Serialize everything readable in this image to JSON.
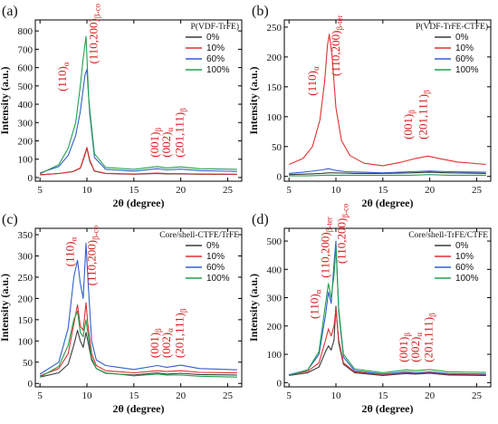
{
  "colors": {
    "0%": "#3a3a3a",
    "10%": "#e03131",
    "60%": "#2f5fd0",
    "100%": "#22a04a",
    "annotation": "#d7191c"
  },
  "chart_data": [
    {
      "type": "line",
      "panel_label": "(a)",
      "legend_title": "P(VDF-TrFE)",
      "legend_position": "top-right",
      "xlabel": "2θ (degree)",
      "ylabel": "Intensity (a.u.)",
      "xlim": [
        4.5,
        26.5
      ],
      "ylim": [
        -20,
        860
      ],
      "xticks": [
        5,
        10,
        15,
        20,
        25
      ],
      "yticks": [
        0,
        100,
        200,
        300,
        400,
        500,
        600,
        700,
        800
      ],
      "grid": false,
      "series": [
        {
          "name": "0%",
          "x": [
            5,
            7,
            8.5,
            9.3,
            9.7,
            10.0,
            10.3,
            10.8,
            12,
            15,
            17.5,
            18.5,
            20,
            22,
            26
          ],
          "y": [
            15,
            22,
            32,
            50,
            110,
            160,
            90,
            35,
            22,
            18,
            22,
            20,
            20,
            18,
            17
          ]
        },
        {
          "name": "10%",
          "x": [
            5,
            7,
            8.5,
            9.3,
            9.7,
            10.0,
            10.3,
            10.8,
            12,
            15,
            17.5,
            18.5,
            20,
            22,
            26
          ],
          "y": [
            15,
            22,
            33,
            52,
            115,
            165,
            95,
            36,
            23,
            19,
            24,
            22,
            21,
            19,
            18
          ]
        },
        {
          "name": "60%",
          "x": [
            5,
            7,
            8,
            8.8,
            9.3,
            9.8,
            10.0,
            10.3,
            10.8,
            12,
            15,
            17.5,
            18.5,
            20,
            22,
            26
          ],
          "y": [
            25,
            60,
            120,
            230,
            360,
            560,
            590,
            350,
            110,
            45,
            35,
            48,
            42,
            46,
            38,
            33
          ]
        },
        {
          "name": "100%",
          "x": [
            5,
            7,
            8,
            8.8,
            9.3,
            9.6,
            9.9,
            10.2,
            10.8,
            12,
            15,
            17.5,
            18.5,
            20,
            22,
            26
          ],
          "y": [
            20,
            70,
            160,
            300,
            500,
            650,
            770,
            420,
            130,
            55,
            45,
            60,
            52,
            58,
            48,
            45
          ]
        }
      ],
      "annotations": [
        {
          "text": "(110)α",
          "x": 7.8,
          "y": 470,
          "rotate": -90
        },
        {
          "text": "(110,200)β-co",
          "x": 11.1,
          "y": 620,
          "rotate": -90
        },
        {
          "text": "(001)β",
          "x": 17.6,
          "y": 110,
          "rotate": -90
        },
        {
          "text": "(002)α",
          "x": 18.9,
          "y": 110,
          "rotate": -90
        },
        {
          "text": "(201,111)β",
          "x": 20.3,
          "y": 110,
          "rotate": -90
        }
      ]
    },
    {
      "type": "line",
      "panel_label": "(b)",
      "legend_title": "P(VDF-TrFE-CTFE)",
      "legend_position": "top-right",
      "xlabel": "2θ (degree)",
      "ylabel": "Intensity (a.u.)",
      "xlim": [
        4.5,
        26.5
      ],
      "ylim": [
        -8,
        262
      ],
      "xticks": [
        5,
        10,
        15,
        20,
        25
      ],
      "yticks": [
        0,
        50,
        100,
        150,
        200,
        250
      ],
      "grid": false,
      "series": [
        {
          "name": "0%",
          "x": [
            5,
            7,
            8.5,
            9.2,
            10,
            12,
            15,
            18,
            20,
            22,
            26
          ],
          "y": [
            3,
            4,
            5,
            6,
            6,
            5,
            5,
            6,
            7,
            6,
            5
          ]
        },
        {
          "name": "10%",
          "x": [
            5,
            6.5,
            7.5,
            8.3,
            8.8,
            9.1,
            9.3,
            9.6,
            10.0,
            10.6,
            11.5,
            13,
            15,
            17,
            18.5,
            19.8,
            21,
            23,
            26
          ],
          "y": [
            20,
            30,
            50,
            95,
            160,
            220,
            238,
            200,
            115,
            60,
            35,
            22,
            18,
            24,
            30,
            34,
            30,
            24,
            20
          ]
        },
        {
          "name": "60%",
          "x": [
            5,
            7,
            8.5,
            9.2,
            10,
            11,
            13,
            15,
            18,
            20,
            22,
            26
          ],
          "y": [
            5,
            8,
            11,
            13,
            10,
            8,
            7,
            6,
            8,
            9,
            8,
            7
          ]
        },
        {
          "name": "100%",
          "x": [
            5,
            7,
            9,
            11,
            13,
            15,
            18,
            20,
            22,
            26
          ],
          "y": [
            1,
            1,
            2,
            2,
            2,
            2,
            2,
            3,
            2,
            2
          ]
        }
      ],
      "annotations": [
        {
          "text": "(110)α",
          "x": 7.9,
          "y": 135,
          "rotate": -90
        },
        {
          "text": "(110,200)β-ter",
          "x": 10.4,
          "y": 168,
          "rotate": -90
        },
        {
          "text": "(001)β",
          "x": 18.1,
          "y": 62,
          "rotate": -90
        },
        {
          "text": "(201,111)β",
          "x": 19.7,
          "y": 62,
          "rotate": -90
        }
      ]
    },
    {
      "type": "line",
      "panel_label": "(c)",
      "legend_title": "Core/shell-CTFE/TrFE",
      "legend_position": "top-right",
      "xlabel": "2θ (degree)",
      "ylabel": "Intensity (a.u.)",
      "xlim": [
        4.5,
        26.5
      ],
      "ylim": [
        -8,
        365
      ],
      "xticks": [
        5,
        10,
        15,
        20,
        25
      ],
      "yticks": [
        0,
        50,
        100,
        150,
        200,
        250,
        300,
        350
      ],
      "grid": false,
      "series": [
        {
          "name": "0%",
          "x": [
            5,
            7,
            8,
            8.6,
            9.0,
            9.3,
            9.6,
            9.9,
            10.1,
            10.5,
            11,
            12,
            15,
            17.5,
            18.5,
            20,
            22,
            26
          ],
          "y": [
            15,
            25,
            45,
            90,
            125,
            100,
            85,
            120,
            100,
            55,
            35,
            24,
            20,
            25,
            22,
            24,
            21,
            20
          ]
        },
        {
          "name": "10%",
          "x": [
            5,
            7,
            8,
            8.6,
            9.0,
            9.3,
            9.6,
            9.9,
            10.1,
            10.5,
            11,
            12,
            15,
            17.5,
            18.5,
            20,
            22,
            26
          ],
          "y": [
            18,
            35,
            70,
            140,
            185,
            135,
            125,
            190,
            140,
            70,
            42,
            30,
            25,
            30,
            28,
            30,
            26,
            25
          ]
        },
        {
          "name": "60%",
          "x": [
            5,
            7,
            8,
            8.6,
            9.0,
            9.3,
            9.6,
            9.9,
            10.1,
            10.5,
            11,
            12,
            15,
            17.5,
            18.5,
            20,
            22,
            26
          ],
          "y": [
            22,
            50,
            130,
            250,
            290,
            235,
            200,
            330,
            250,
            100,
            55,
            42,
            33,
            42,
            38,
            43,
            35,
            32
          ]
        },
        {
          "name": "100%",
          "x": [
            5,
            7,
            8,
            8.6,
            9.0,
            9.3,
            9.6,
            9.9,
            10.1,
            10.5,
            11,
            12,
            15,
            17.5,
            18.5,
            20,
            22,
            26
          ],
          "y": [
            15,
            40,
            90,
            150,
            170,
            120,
            110,
            150,
            120,
            60,
            35,
            25,
            18,
            22,
            20,
            20,
            17,
            15
          ]
        }
      ],
      "annotations": [
        {
          "text": "(110)α",
          "x": 8.6,
          "y": 275,
          "rotate": -90
        },
        {
          "text": "(110,200)β-co",
          "x": 10.9,
          "y": 230,
          "rotate": -90
        },
        {
          "text": "(001)β",
          "x": 17.6,
          "y": 60,
          "rotate": -90
        },
        {
          "text": "(002)α",
          "x": 18.9,
          "y": 60,
          "rotate": -90
        },
        {
          "text": "(201,111)β",
          "x": 20.3,
          "y": 60,
          "rotate": -90
        }
      ]
    },
    {
      "type": "line",
      "panel_label": "(d)",
      "legend_title": "Core/shell-TrFE/CTFE",
      "legend_position": "top-right",
      "xlabel": "2θ (degree)",
      "ylabel": "Intensity (a.u.)",
      "xlim": [
        4.5,
        26.5
      ],
      "ylim": [
        -15,
        545
      ],
      "xticks": [
        5,
        10,
        15,
        20,
        25
      ],
      "yticks": [
        0,
        100,
        200,
        300,
        400,
        500
      ],
      "grid": false,
      "series": [
        {
          "name": "0%",
          "x": [
            5,
            7,
            8.2,
            8.9,
            9.2,
            9.5,
            9.8,
            10.0,
            10.3,
            10.8,
            12,
            15,
            17.5,
            18.5,
            20,
            22,
            26
          ],
          "y": [
            25,
            35,
            55,
            110,
            130,
            115,
            150,
            270,
            140,
            65,
            35,
            25,
            32,
            30,
            33,
            27,
            25
          ]
        },
        {
          "name": "10%",
          "x": [
            5,
            7,
            8.2,
            8.9,
            9.2,
            9.5,
            9.8,
            10.0,
            10.3,
            10.8,
            12,
            15,
            17.5,
            18.5,
            20,
            22,
            26
          ],
          "y": [
            28,
            40,
            70,
            150,
            190,
            165,
            200,
            260,
            150,
            70,
            38,
            28,
            36,
            33,
            36,
            30,
            28
          ]
        },
        {
          "name": "60%",
          "x": [
            5,
            7,
            8.2,
            8.9,
            9.2,
            9.5,
            9.8,
            10.0,
            10.3,
            10.8,
            12,
            15,
            17.5,
            18.5,
            20,
            22,
            26
          ],
          "y": [
            28,
            45,
            100,
            240,
            320,
            280,
            420,
            500,
            250,
            90,
            42,
            30,
            38,
            35,
            38,
            32,
            30
          ]
        },
        {
          "name": "100%",
          "x": [
            5,
            7,
            8.2,
            8.9,
            9.2,
            9.5,
            9.8,
            10.0,
            10.3,
            10.8,
            12,
            15,
            17.5,
            18.5,
            20,
            22,
            26
          ],
          "y": [
            25,
            45,
            110,
            280,
            350,
            300,
            380,
            480,
            260,
            100,
            48,
            35,
            45,
            42,
            46,
            38,
            36
          ]
        }
      ],
      "annotations": [
        {
          "text": "(110)α",
          "x": 8.1,
          "y": 225,
          "rotate": -90
        },
        {
          "text": "(110,200)β-ter",
          "x": 9.3,
          "y": 370,
          "rotate": -90
        },
        {
          "text": "(110,200)β-co",
          "x": 11.0,
          "y": 420,
          "rotate": -90
        },
        {
          "text": "(001)β",
          "x": 17.6,
          "y": 72,
          "rotate": -90
        },
        {
          "text": "(002)α",
          "x": 18.9,
          "y": 72,
          "rotate": -90
        },
        {
          "text": "(201,111)β",
          "x": 20.3,
          "y": 72,
          "rotate": -90
        }
      ]
    }
  ]
}
